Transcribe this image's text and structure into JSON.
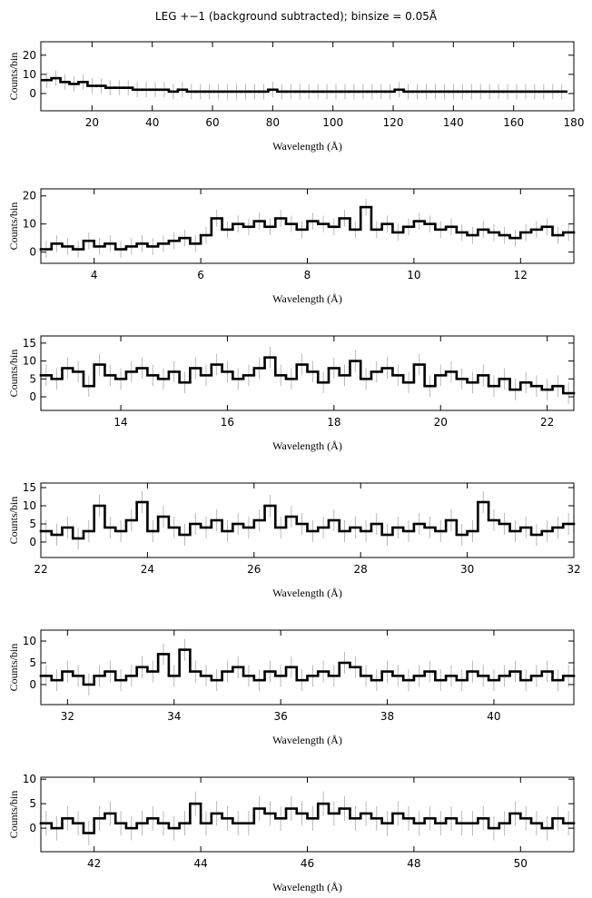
{
  "chart_data": [
    {
      "type": "step",
      "title": "LEG +−1 (background subtracted); binsize = 0.05Å",
      "xlabel": "Wavelength (Å)",
      "ylabel": "Counts/bin",
      "color": "#000000",
      "error_color": "#a8a8a8",
      "x": [
        5,
        8,
        11,
        14,
        17,
        20,
        23,
        26,
        29,
        32,
        35,
        38,
        41,
        44,
        47,
        50,
        53,
        56,
        59,
        62,
        65,
        68,
        71,
        74,
        77,
        80,
        83,
        86,
        89,
        92,
        95,
        98,
        101,
        104,
        107,
        110,
        113,
        116,
        119,
        122,
        125,
        128,
        131,
        134,
        137,
        140,
        143,
        146,
        149,
        152,
        155,
        158,
        161,
        164,
        167,
        170,
        173,
        176
      ],
      "values": [
        7,
        8,
        6,
        5,
        6,
        4,
        4,
        3,
        3,
        3,
        2,
        2,
        2,
        2,
        1,
        2,
        1,
        1,
        1,
        1,
        1,
        1,
        1,
        1,
        1,
        2,
        1,
        1,
        1,
        1,
        1,
        1,
        1,
        1,
        1,
        1,
        1,
        1,
        1,
        2,
        1,
        1,
        1,
        1,
        1,
        1,
        1,
        1,
        1,
        1,
        1,
        1,
        1,
        1,
        1,
        1,
        1,
        1
      ],
      "error": 4,
      "xlim": [
        3,
        180
      ],
      "ylim": [
        -9,
        27
      ],
      "xticks": [
        20,
        40,
        60,
        80,
        100,
        120,
        140,
        160,
        180
      ],
      "yticks": [
        0,
        10,
        20
      ]
    },
    {
      "type": "step",
      "xlabel": "Wavelength (Å)",
      "ylabel": "Counts/bin",
      "color": "#000000",
      "error_color": "#a8a8a8",
      "x": [
        3.1,
        3.3,
        3.5,
        3.7,
        3.9,
        4.1,
        4.3,
        4.5,
        4.7,
        4.9,
        5.1,
        5.3,
        5.5,
        5.7,
        5.9,
        6.1,
        6.3,
        6.5,
        6.7,
        6.9,
        7.1,
        7.3,
        7.5,
        7.7,
        7.9,
        8.1,
        8.3,
        8.5,
        8.7,
        8.9,
        9.1,
        9.3,
        9.5,
        9.7,
        9.9,
        10.1,
        10.3,
        10.5,
        10.7,
        10.9,
        11.1,
        11.3,
        11.5,
        11.7,
        11.9,
        12.1,
        12.3,
        12.5,
        12.7,
        12.9
      ],
      "values": [
        1,
        3,
        2,
        1,
        4,
        2,
        3,
        1,
        2,
        3,
        2,
        3,
        4,
        5,
        3,
        6,
        12,
        8,
        10,
        9,
        11,
        9,
        12,
        10,
        8,
        11,
        10,
        9,
        12,
        8,
        16,
        8,
        10,
        7,
        9,
        11,
        10,
        8,
        9,
        7,
        6,
        8,
        7,
        6,
        5,
        7,
        8,
        9,
        6,
        7
      ],
      "error": 3,
      "xlim": [
        3,
        13
      ],
      "ylim": [
        -4,
        22.5
      ],
      "xticks": [
        4,
        6,
        8,
        10,
        12
      ],
      "yticks": [
        0,
        10,
        20
      ]
    },
    {
      "type": "step",
      "xlabel": "Wavelength (Å)",
      "ylabel": "Counts/bin",
      "color": "#000000",
      "error_color": "#a8a8a8",
      "x": [
        12.6,
        12.8,
        13,
        13.2,
        13.4,
        13.6,
        13.8,
        14,
        14.2,
        14.4,
        14.6,
        14.8,
        15,
        15.2,
        15.4,
        15.6,
        15.8,
        16,
        16.2,
        16.4,
        16.6,
        16.8,
        17,
        17.2,
        17.4,
        17.6,
        17.8,
        18,
        18.2,
        18.4,
        18.6,
        18.8,
        19,
        19.2,
        19.4,
        19.6,
        19.8,
        20,
        20.2,
        20.4,
        20.6,
        20.8,
        21,
        21.2,
        21.4,
        21.6,
        21.8,
        22,
        22.2,
        22.4
      ],
      "values": [
        6,
        5,
        8,
        7,
        3,
        9,
        6,
        5,
        7,
        8,
        6,
        5,
        7,
        4,
        8,
        6,
        9,
        7,
        5,
        6,
        8,
        11,
        6,
        5,
        9,
        7,
        4,
        8,
        6,
        10,
        5,
        7,
        8,
        6,
        4,
        9,
        3,
        6,
        7,
        5,
        4,
        6,
        3,
        5,
        2,
        4,
        3,
        2,
        3,
        1
      ],
      "error": 3,
      "xlim": [
        12.5,
        22.5
      ],
      "ylim": [
        -3.8,
        17
      ],
      "xticks": [
        14,
        16,
        18,
        20,
        22
      ],
      "yticks": [
        0,
        5,
        10,
        15
      ]
    },
    {
      "type": "step",
      "xlabel": "Wavelength (Å)",
      "ylabel": "Counts/bin",
      "color": "#000000",
      "error_color": "#a8a8a8",
      "x": [
        22.1,
        22.3,
        22.5,
        22.7,
        22.9,
        23.1,
        23.3,
        23.5,
        23.7,
        23.9,
        24.1,
        24.3,
        24.5,
        24.7,
        24.9,
        25.1,
        25.3,
        25.5,
        25.7,
        25.9,
        26.1,
        26.3,
        26.5,
        26.7,
        26.9,
        27.1,
        27.3,
        27.5,
        27.7,
        27.9,
        28.1,
        28.3,
        28.5,
        28.7,
        28.9,
        29.1,
        29.3,
        29.5,
        29.7,
        29.9,
        30.1,
        30.3,
        30.5,
        30.7,
        30.9,
        31.1,
        31.3,
        31.5,
        31.7,
        31.9
      ],
      "values": [
        3,
        2,
        4,
        1,
        3,
        10,
        4,
        3,
        6,
        11,
        3,
        7,
        4,
        2,
        5,
        4,
        6,
        3,
        5,
        4,
        6,
        10,
        4,
        7,
        5,
        3,
        4,
        6,
        3,
        4,
        3,
        5,
        2,
        4,
        3,
        5,
        4,
        3,
        6,
        2,
        3,
        11,
        6,
        5,
        3,
        4,
        2,
        3,
        4,
        5
      ],
      "error": 3,
      "xlim": [
        22,
        32
      ],
      "ylim": [
        -4.25,
        16.25
      ],
      "xticks": [
        22,
        24,
        26,
        28,
        30,
        32
      ],
      "yticks": [
        0,
        5,
        10,
        15
      ]
    },
    {
      "type": "step",
      "xlabel": "Wavelength (Å)",
      "ylabel": "Counts/bin",
      "color": "#000000",
      "error_color": "#a8a8a8",
      "x": [
        31.6,
        31.8,
        32,
        32.2,
        32.4,
        32.6,
        32.8,
        33,
        33.2,
        33.4,
        33.6,
        33.8,
        34,
        34.2,
        34.4,
        34.6,
        34.8,
        35,
        35.2,
        35.4,
        35.6,
        35.8,
        36,
        36.2,
        36.4,
        36.6,
        36.8,
        37,
        37.2,
        37.4,
        37.6,
        37.8,
        38,
        38.2,
        38.4,
        38.6,
        38.8,
        39,
        39.2,
        39.4,
        39.6,
        39.8,
        40,
        40.2,
        40.4,
        40.6,
        40.8,
        41,
        41.2,
        41.4
      ],
      "values": [
        2,
        1,
        3,
        2,
        0,
        2,
        3,
        1,
        2,
        4,
        3,
        7,
        2,
        8,
        3,
        2,
        1,
        3,
        4,
        2,
        1,
        3,
        2,
        4,
        1,
        2,
        3,
        2,
        5,
        4,
        2,
        1,
        3,
        2,
        1,
        2,
        3,
        1,
        2,
        1,
        3,
        2,
        1,
        2,
        3,
        1,
        2,
        3,
        1,
        2
      ],
      "error": 2.5,
      "xlim": [
        31.5,
        41.5
      ],
      "ylim": [
        -4.6,
        12.5
      ],
      "xticks": [
        32,
        34,
        36,
        38,
        40
      ],
      "yticks": [
        0,
        5,
        10
      ]
    },
    {
      "type": "step",
      "xlabel": "Wavelength (Å)",
      "ylabel": "Counts/bin",
      "color": "#000000",
      "error_color": "#a8a8a8",
      "x": [
        41.1,
        41.3,
        41.5,
        41.7,
        41.9,
        42.1,
        42.3,
        42.5,
        42.7,
        42.9,
        43.1,
        43.3,
        43.5,
        43.7,
        43.9,
        44.1,
        44.3,
        44.5,
        44.7,
        44.9,
        45.1,
        45.3,
        45.5,
        45.7,
        45.9,
        46.1,
        46.3,
        46.5,
        46.7,
        46.9,
        47.1,
        47.3,
        47.5,
        47.7,
        47.9,
        48.1,
        48.3,
        48.5,
        48.7,
        48.9,
        49.1,
        49.3,
        49.5,
        49.7,
        49.9,
        50.1,
        50.3,
        50.5,
        50.7,
        50.9
      ],
      "values": [
        1,
        0,
        2,
        1,
        -1,
        2,
        3,
        1,
        0,
        1,
        2,
        1,
        0,
        1,
        5,
        1,
        3,
        2,
        1,
        1,
        4,
        3,
        2,
        4,
        3,
        2,
        5,
        3,
        4,
        2,
        3,
        2,
        1,
        3,
        2,
        1,
        2,
        1,
        2,
        1,
        1,
        2,
        0,
        1,
        3,
        2,
        1,
        0,
        2,
        1
      ],
      "error": 2.5,
      "xlim": [
        41,
        51
      ],
      "ylim": [
        -4.8,
        10.4
      ],
      "xticks": [
        42,
        44,
        46,
        48,
        50
      ],
      "yticks": [
        0,
        5,
        10
      ]
    }
  ]
}
